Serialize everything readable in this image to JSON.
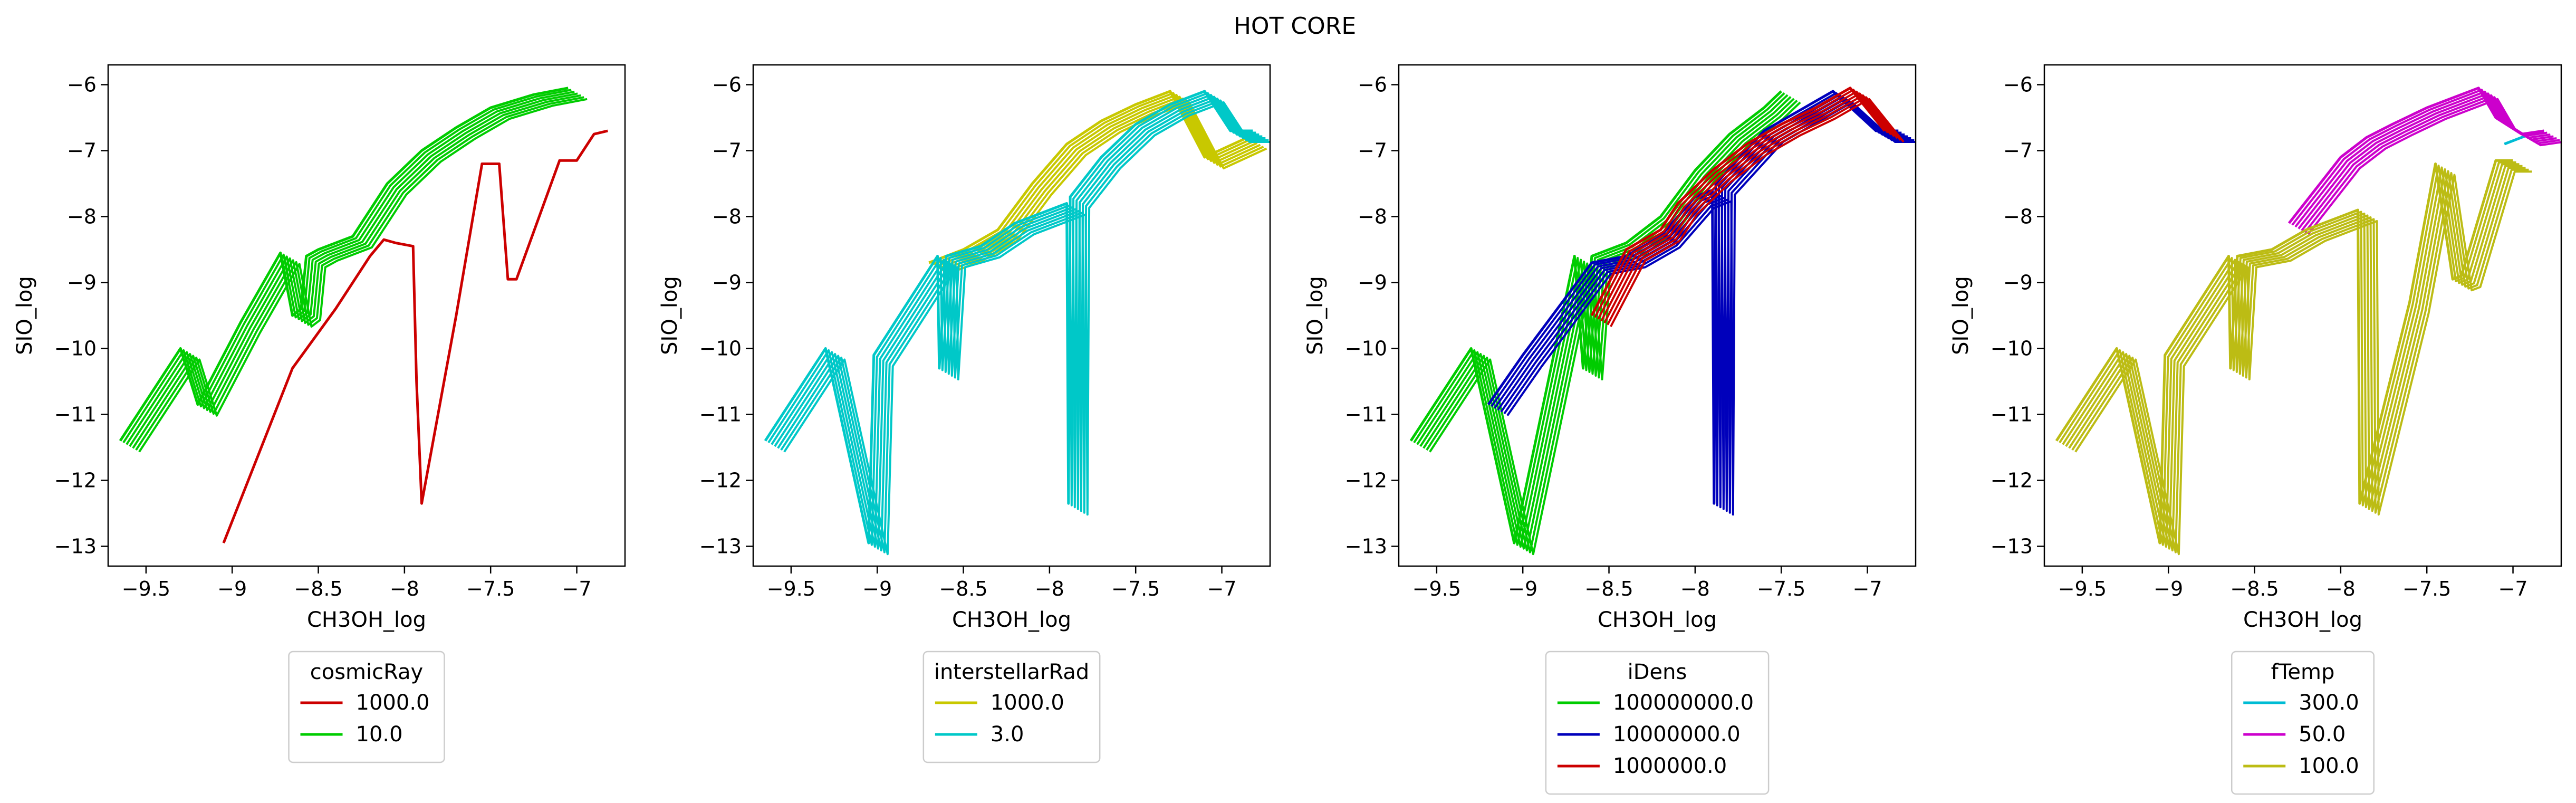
{
  "figure": {
    "title": "HOT CORE"
  },
  "chart_data": [
    {
      "type": "line",
      "xlabel": "CH3OH_log",
      "ylabel": "SIO_log",
      "xlim": [
        -9.72,
        -6.72
      ],
      "ylim": [
        -13.3,
        -5.7
      ],
      "xticks": [
        -9.5,
        -9.0,
        -8.5,
        -8.0,
        -7.5,
        -7.0
      ],
      "yticks": [
        -13,
        -12,
        -11,
        -10,
        -9,
        -8,
        -7,
        -6
      ],
      "grid": false,
      "legend": {
        "title": "cosmicRay",
        "placement": "below"
      },
      "series": [
        {
          "name": "1000.0",
          "color": "#cc0000",
          "x": [
            -9.05,
            -8.65,
            -8.4,
            -8.2,
            -8.12,
            -8.05,
            -7.95,
            -7.93,
            -7.9,
            -7.7,
            -7.55,
            -7.45,
            -7.4,
            -7.35,
            -7.1,
            -7.0,
            -6.9,
            -6.82
          ],
          "y": [
            -12.95,
            -10.3,
            -9.4,
            -8.6,
            -8.35,
            -8.4,
            -8.45,
            -10.5,
            -12.35,
            -9.5,
            -7.2,
            -7.2,
            -8.95,
            -8.95,
            -7.15,
            -7.15,
            -6.75,
            -6.7
          ]
        },
        {
          "name": "10.0",
          "color": "#00cc00",
          "band": true,
          "x": [
            -9.65,
            -9.3,
            -9.2,
            -8.95,
            -8.72,
            -8.65,
            -8.6,
            -8.57,
            -8.5,
            -8.3,
            -8.1,
            -7.9,
            -7.7,
            -7.5,
            -7.25,
            -7.05
          ],
          "y": [
            -11.4,
            -10.0,
            -10.85,
            -9.6,
            -8.55,
            -9.5,
            -9.4,
            -8.6,
            -8.5,
            -8.3,
            -7.5,
            -7.0,
            -6.65,
            -6.35,
            -6.15,
            -6.05
          ]
        }
      ]
    },
    {
      "type": "line",
      "xlabel": "CH3OH_log",
      "ylabel": "SIO_log",
      "xlim": [
        -9.72,
        -6.72
      ],
      "ylim": [
        -13.3,
        -5.7
      ],
      "xticks": [
        -9.5,
        -9.0,
        -8.5,
        -8.0,
        -7.5,
        -7.0
      ],
      "yticks": [
        -13,
        -12,
        -11,
        -10,
        -9,
        -8,
        -7,
        -6
      ],
      "grid": false,
      "legend": {
        "title": "interstellarRad",
        "placement": "below"
      },
      "series": [
        {
          "name": "1000.0",
          "color": "#c8c800",
          "band": true,
          "x": [
            -8.7,
            -8.5,
            -8.3,
            -8.1,
            -7.9,
            -7.7,
            -7.5,
            -7.3,
            -7.1,
            -6.85
          ],
          "y": [
            -8.7,
            -8.5,
            -8.2,
            -7.5,
            -6.9,
            -6.55,
            -6.3,
            -6.1,
            -7.1,
            -6.8
          ]
        },
        {
          "name": "3.0",
          "color": "#00c8c8",
          "band": true,
          "x": [
            -9.65,
            -9.3,
            -9.05,
            -9.02,
            -8.65,
            -8.64,
            -8.6,
            -8.4,
            -8.2,
            -7.9,
            -7.89,
            -7.88,
            -7.7,
            -7.5,
            -7.3,
            -7.1,
            -6.95,
            -6.82
          ],
          "y": [
            -11.4,
            -10.0,
            -12.95,
            -10.1,
            -8.6,
            -10.3,
            -8.6,
            -8.45,
            -8.1,
            -7.8,
            -12.35,
            -7.7,
            -7.1,
            -6.6,
            -6.3,
            -6.1,
            -6.7,
            -6.7
          ]
        }
      ]
    },
    {
      "type": "line",
      "xlabel": "CH3OH_log",
      "ylabel": "SIO_log",
      "xlim": [
        -9.72,
        -6.72
      ],
      "ylim": [
        -13.3,
        -5.7
      ],
      "xticks": [
        -9.5,
        -9.0,
        -8.5,
        -8.0,
        -7.5,
        -7.0
      ],
      "yticks": [
        -13,
        -12,
        -11,
        -10,
        -9,
        -8,
        -7,
        -6
      ],
      "grid": false,
      "legend": {
        "title": "iDens",
        "placement": "below"
      },
      "series": [
        {
          "name": "100000000.0",
          "color": "#00cc00",
          "band": true,
          "x": [
            -9.65,
            -9.3,
            -9.05,
            -8.7,
            -8.65,
            -8.6,
            -8.4,
            -8.2,
            -8.0,
            -7.8,
            -7.6,
            -7.5
          ],
          "y": [
            -11.4,
            -10.0,
            -12.95,
            -8.6,
            -10.3,
            -8.6,
            -8.4,
            -8.0,
            -7.3,
            -6.75,
            -6.35,
            -6.1
          ]
        },
        {
          "name": "10000000.0",
          "color": "#0000bb",
          "band": true,
          "x": [
            -9.2,
            -9.0,
            -8.6,
            -8.4,
            -8.2,
            -8.0,
            -7.9,
            -7.89,
            -7.88,
            -7.6,
            -7.4,
            -7.2,
            -6.95,
            -6.82
          ],
          "y": [
            -10.85,
            -10.1,
            -8.7,
            -8.6,
            -8.3,
            -7.7,
            -7.6,
            -12.35,
            -7.5,
            -6.7,
            -6.4,
            -6.1,
            -6.7,
            -6.7
          ]
        },
        {
          "name": "1000000.0",
          "color": "#cc0000",
          "band": true,
          "x": [
            -8.6,
            -8.4,
            -8.2,
            -8.1,
            -7.9,
            -7.7,
            -7.5,
            -7.3,
            -7.1,
            -6.9
          ],
          "y": [
            -9.5,
            -8.5,
            -8.2,
            -7.8,
            -7.3,
            -6.9,
            -6.6,
            -6.35,
            -6.05,
            -6.7
          ]
        }
      ]
    },
    {
      "type": "line",
      "xlabel": "CH3OH_log",
      "ylabel": "SIO_log",
      "xlim": [
        -9.72,
        -6.72
      ],
      "ylim": [
        -13.3,
        -5.7
      ],
      "xticks": [
        -9.5,
        -9.0,
        -8.5,
        -8.0,
        -7.5,
        -7.0
      ],
      "yticks": [
        -13,
        -12,
        -11,
        -10,
        -9,
        -8,
        -7,
        -6
      ],
      "grid": false,
      "legend": {
        "title": "fTemp",
        "placement": "below"
      },
      "series": [
        {
          "name": "300.0",
          "color": "#00bcd4",
          "x": [
            -7.05,
            -6.9,
            -6.82
          ],
          "y": [
            -6.9,
            -6.75,
            -6.7
          ]
        },
        {
          "name": "50.0",
          "color": "#cc00cc",
          "band": true,
          "x": [
            -8.3,
            -8.15,
            -8.0,
            -7.85,
            -7.7,
            -7.5,
            -7.35,
            -7.2,
            -7.1,
            -6.95,
            -6.82
          ],
          "y": [
            -8.1,
            -7.6,
            -7.1,
            -6.8,
            -6.6,
            -6.35,
            -6.2,
            -6.05,
            -6.5,
            -6.75,
            -6.7
          ]
        },
        {
          "name": "100.0",
          "color": "#bcbc14",
          "band": true,
          "x": [
            -9.65,
            -9.3,
            -9.05,
            -9.02,
            -8.65,
            -8.64,
            -8.6,
            -8.4,
            -8.2,
            -7.9,
            -7.89,
            -7.6,
            -7.45,
            -7.35,
            -7.3,
            -7.1,
            -7.0
          ],
          "y": [
            -11.4,
            -10.0,
            -12.95,
            -10.1,
            -8.6,
            -10.3,
            -8.6,
            -8.5,
            -8.2,
            -7.9,
            -12.35,
            -9.3,
            -7.2,
            -8.95,
            -8.9,
            -7.15,
            -7.15
          ]
        }
      ]
    }
  ]
}
